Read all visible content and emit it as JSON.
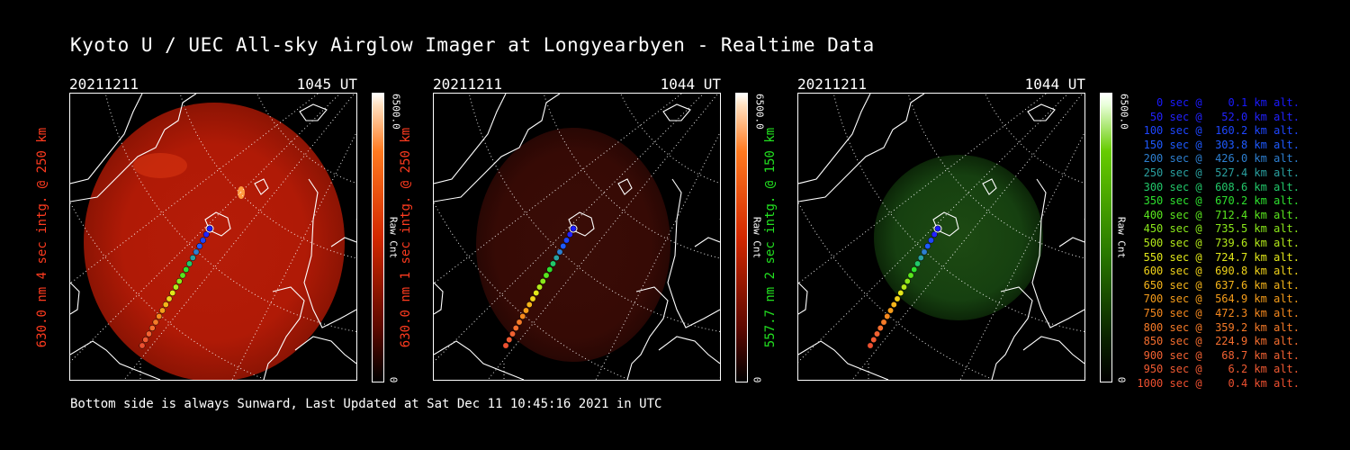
{
  "title": "Kyoto U / UEC All-sky Airglow Imager at Longyearbyen - Realtime Data",
  "footer": "Bottom side is always Sunward, Last Updated at Sat Dec 11 10:45:16 2021 in UTC",
  "colors": {
    "red": "#ff3b1f",
    "green": "#22e020",
    "background": "#000000"
  },
  "panels": [
    {
      "date": "20211211",
      "time": "1045 UT",
      "label": "630.0 nm 4 sec intg. @ 250 km",
      "label_color": "#ff3b1f",
      "colorbar_max": "6500.0",
      "colorbar_min": "0",
      "colorbar_unit": "Raw Cnt",
      "colormap": "red",
      "intensity": "bright"
    },
    {
      "date": "20211211",
      "time": "1044 UT",
      "label": "630.0 nm 1 sec intg. @ 250 km",
      "label_color": "#ff3b1f",
      "colorbar_max": "6500.0",
      "colorbar_min": "0",
      "colorbar_unit": "Raw Cnt",
      "colormap": "red",
      "intensity": "dim"
    },
    {
      "date": "20211211",
      "time": "1044 UT",
      "label": "557.7 nm 2 sec intg. @ 150 km",
      "label_color": "#22e020",
      "colorbar_max": "6500.0",
      "colorbar_min": "0",
      "colorbar_unit": "Raw Cnt",
      "colormap": "green",
      "intensity": "dim"
    }
  ],
  "legend": [
    {
      "text": "   0 sec @    0.1 km alt.",
      "color": "#1a1aff"
    },
    {
      "text": "  50 sec @   52.0 km alt.",
      "color": "#2222ff"
    },
    {
      "text": " 100 sec @  160.2 km alt.",
      "color": "#1e46ff"
    },
    {
      "text": " 150 sec @  303.8 km alt.",
      "color": "#1e5aff"
    },
    {
      "text": " 200 sec @  426.0 km alt.",
      "color": "#2d7fd0"
    },
    {
      "text": " 250 sec @  527.4 km alt.",
      "color": "#2aa0a0"
    },
    {
      "text": " 300 sec @  608.6 km alt.",
      "color": "#22c86a"
    },
    {
      "text": " 350 sec @  670.2 km alt.",
      "color": "#2ee02e"
    },
    {
      "text": " 400 sec @  712.4 km alt.",
      "color": "#5ae61e"
    },
    {
      "text": " 450 sec @  735.5 km alt.",
      "color": "#8ae81a"
    },
    {
      "text": " 500 sec @  739.6 km alt.",
      "color": "#b4ea1a"
    },
    {
      "text": " 550 sec @  724.7 km alt.",
      "color": "#e2e81a"
    },
    {
      "text": " 600 sec @  690.8 km alt.",
      "color": "#f0d21a"
    },
    {
      "text": " 650 sec @  637.6 km alt.",
      "color": "#f5b41a"
    },
    {
      "text": " 700 sec @  564.9 km alt.",
      "color": "#f59c1a"
    },
    {
      "text": " 750 sec @  472.3 km alt.",
      "color": "#f5881e"
    },
    {
      "text": " 800 sec @  359.2 km alt.",
      "color": "#f57a28"
    },
    {
      "text": " 850 sec @  224.9 km alt.",
      "color": "#f56e2e"
    },
    {
      "text": " 900 sec @   68.7 km alt.",
      "color": "#f26232"
    },
    {
      "text": " 950 sec @    6.2 km alt.",
      "color": "#f05a32"
    },
    {
      "text": "1000 sec @    0.4 km alt.",
      "color": "#ee5030"
    }
  ]
}
